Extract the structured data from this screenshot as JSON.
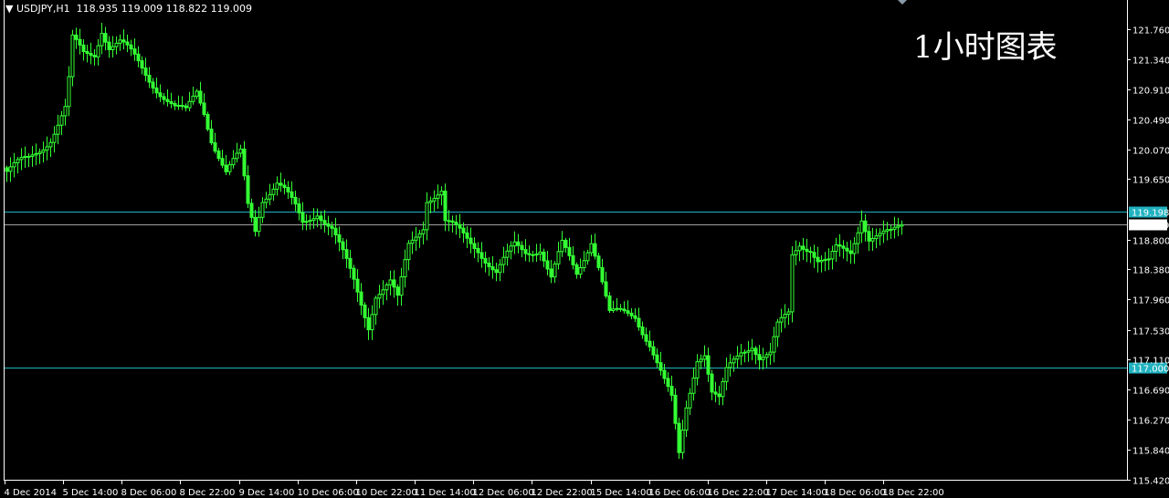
{
  "header": {
    "symbol": "USDJPY,H1",
    "ohlc": "118.935 119.009 118.822 119.009"
  },
  "chart_data": {
    "type": "candlestick",
    "title": "",
    "annotation": "1小时图表",
    "ylim": [
      115.42,
      121.76
    ],
    "y_ticks": [
      "121.760",
      "121.340",
      "120.910",
      "120.490",
      "120.070",
      "119.650",
      "118.800",
      "118.380",
      "117.960",
      "117.530",
      "117.110",
      "116.690",
      "116.270",
      "115.840",
      "115.420"
    ],
    "x_ticks": [
      "4 Dec 2014",
      "5 Dec 14:00",
      "8 Dec 06:00",
      "8 Dec 22:00",
      "9 Dec 14:00",
      "10 Dec 06:00",
      "10 Dec 22:00",
      "11 Dec 14:00",
      "12 Dec 06:00",
      "12 Dec 22:00",
      "15 Dec 14:00",
      "16 Dec 06:00",
      "16 Dec 22:00",
      "17 Dec 14:00",
      "18 Dec 06:00",
      "18 Dec 22:00"
    ],
    "bars_per_x_tick": 16,
    "grid": false,
    "last_price": {
      "value": "119.009",
      "color": "#ffffff"
    },
    "horizontal_lines": [
      {
        "value": "119.198",
        "color": "#20b2c0"
      },
      {
        "value": "117.000",
        "color": "#20b2c0"
      }
    ],
    "candle_color": "#33ff33",
    "close_points_by_bar": [
      [
        0,
        119.76
      ],
      [
        6,
        119.92
      ],
      [
        12,
        120.25
      ],
      [
        16,
        120.63
      ],
      [
        17,
        121.02
      ],
      [
        18,
        121.59
      ],
      [
        21,
        121.4
      ],
      [
        24,
        121.43
      ],
      [
        26,
        121.79
      ],
      [
        28,
        121.53
      ],
      [
        31,
        121.56
      ],
      [
        35,
        121.34
      ],
      [
        39,
        121.08
      ],
      [
        42,
        120.89
      ],
      [
        46,
        120.63
      ],
      [
        49,
        120.57
      ],
      [
        52,
        120.89
      ],
      [
        54,
        120.63
      ],
      [
        56,
        120.25
      ],
      [
        60,
        119.73
      ],
      [
        64,
        119.99
      ],
      [
        66,
        119.28
      ],
      [
        68,
        118.96
      ],
      [
        70,
        119.41
      ],
      [
        74,
        119.6
      ],
      [
        76,
        119.47
      ],
      [
        79,
        119.22
      ],
      [
        81,
        119.02
      ],
      [
        85,
        119.22
      ],
      [
        89,
        118.96
      ],
      [
        91,
        118.7
      ],
      [
        95,
        118.19
      ],
      [
        99,
        117.61
      ],
      [
        101,
        118.06
      ],
      [
        105,
        118.19
      ],
      [
        107,
        117.93
      ],
      [
        110,
        118.7
      ],
      [
        114,
        119.02
      ],
      [
        115,
        119.41
      ],
      [
        119,
        119.47
      ],
      [
        120,
        119.02
      ],
      [
        124,
        118.89
      ],
      [
        129,
        118.7
      ],
      [
        134,
        118.32
      ],
      [
        139,
        118.7
      ],
      [
        142,
        118.64
      ],
      [
        146,
        118.7
      ],
      [
        149,
        118.25
      ],
      [
        152,
        118.7
      ],
      [
        156,
        118.32
      ],
      [
        160,
        118.83
      ],
      [
        162,
        118.45
      ],
      [
        165,
        117.74
      ],
      [
        169,
        117.74
      ],
      [
        172,
        117.74
      ],
      [
        176,
        117.36
      ],
      [
        180,
        116.78
      ],
      [
        182,
        116.52
      ],
      [
        184,
        115.75
      ],
      [
        186,
        116.45
      ],
      [
        189,
        117.17
      ],
      [
        191,
        117.23
      ],
      [
        193,
        116.65
      ],
      [
        195,
        116.52
      ],
      [
        197,
        116.91
      ],
      [
        201,
        117.23
      ],
      [
        204,
        117.36
      ],
      [
        206,
        117.17
      ],
      [
        209,
        117.17
      ],
      [
        211,
        117.55
      ],
      [
        214,
        117.74
      ],
      [
        215,
        118.58
      ],
      [
        217,
        118.77
      ],
      [
        220,
        118.7
      ],
      [
        222,
        118.51
      ],
      [
        225,
        118.45
      ],
      [
        227,
        118.64
      ],
      [
        231,
        118.64
      ],
      [
        234,
        119.15
      ],
      [
        236,
        118.83
      ],
      [
        239,
        118.83
      ],
      [
        242,
        118.86
      ],
      [
        245,
        119.009
      ]
    ]
  }
}
